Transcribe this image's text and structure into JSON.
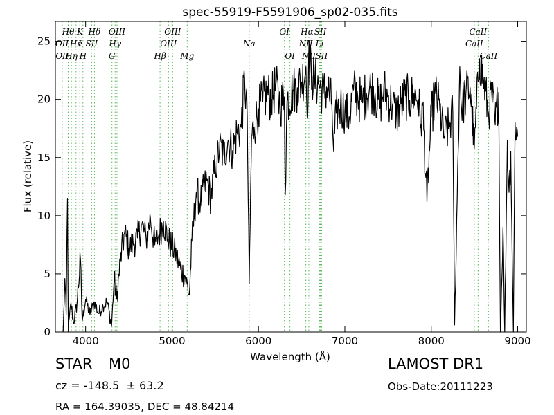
{
  "chart_data": {
    "type": "line",
    "title": "spec-55919-F5591906_sp02-035.fits",
    "xlabel": "Wavelength (Å)",
    "ylabel": "Flux (relative)",
    "xlim": [
      3650,
      9100
    ],
    "ylim": [
      0,
      26.7
    ],
    "xticks": [
      4000,
      5000,
      6000,
      7000,
      8000,
      9000
    ],
    "yticks": [
      0,
      5,
      10,
      15,
      20,
      25
    ],
    "grid": false,
    "line_color": "#000000",
    "marker_color": "#5cb85c",
    "spectral_lines": [
      {
        "label": "Hθ",
        "wavelength": 3798,
        "row": 0
      },
      {
        "label": "OII",
        "wavelength": 3727,
        "row": 1
      },
      {
        "label": "OII",
        "wavelength": 3729,
        "row": 2
      },
      {
        "label": "Hη",
        "wavelength": 3835,
        "row": 2
      },
      {
        "label": "He",
        "wavelength": 3889,
        "row": 1
      },
      {
        "label": "K",
        "wavelength": 3934,
        "row": 0
      },
      {
        "label": "I",
        "wavelength": 3933,
        "row": 1
      },
      {
        "label": "H",
        "wavelength": 3969,
        "row": 2
      },
      {
        "label": "SII",
        "wavelength": 4070,
        "row": 1
      },
      {
        "label": "Hδ",
        "wavelength": 4102,
        "row": 0
      },
      {
        "label": "OIII",
        "wavelength": 4363,
        "row": 0
      },
      {
        "label": "Hγ",
        "wavelength": 4341,
        "row": 1
      },
      {
        "label": "G",
        "wavelength": 4305,
        "row": 2
      },
      {
        "label": "OIII",
        "wavelength": 5007,
        "row": 0
      },
      {
        "label": "OIII",
        "wavelength": 4959,
        "row": 1
      },
      {
        "label": "Hβ",
        "wavelength": 4861,
        "row": 2
      },
      {
        "label": "Mg",
        "wavelength": 5175,
        "row": 2
      },
      {
        "label": "Na",
        "wavelength": 5893,
        "row": 1
      },
      {
        "label": "OI",
        "wavelength": 6300,
        "row": 0
      },
      {
        "label": "OI",
        "wavelength": 6364,
        "row": 2
      },
      {
        "label": "Hα",
        "wavelength": 6563,
        "row": 0
      },
      {
        "label": "SII",
        "wavelength": 6716,
        "row": 0
      },
      {
        "label": "NII",
        "wavelength": 6548,
        "row": 1
      },
      {
        "label": "NII",
        "wavelength": 6583,
        "row": 2
      },
      {
        "label": "Li",
        "wavelength": 6708,
        "row": 1
      },
      {
        "label": "SII",
        "wavelength": 6731,
        "row": 2
      },
      {
        "label": "CaII",
        "wavelength": 8542,
        "row": 0
      },
      {
        "label": "CaII",
        "wavelength": 8498,
        "row": 1
      },
      {
        "label": "CaII",
        "wavelength": 8662,
        "row": 2
      }
    ],
    "flux_anchors": [
      [
        3740,
        0
      ],
      [
        3760,
        4.6
      ],
      [
        3775,
        1.5
      ],
      [
        3790,
        11.5
      ],
      [
        3800,
        0
      ],
      [
        3830,
        2.5
      ],
      [
        3860,
        0.8
      ],
      [
        3900,
        2.4
      ],
      [
        3940,
        6.3
      ],
      [
        3960,
        1.0
      ],
      [
        4000,
        2.8
      ],
      [
        4050,
        1.5
      ],
      [
        4100,
        2.6
      ],
      [
        4150,
        1.6
      ],
      [
        4200,
        2.3
      ],
      [
        4250,
        2.6
      ],
      [
        4300,
        0.5
      ],
      [
        4330,
        4.5
      ],
      [
        4360,
        2.8
      ],
      [
        4400,
        6.0
      ],
      [
        4450,
        8.5
      ],
      [
        4500,
        7.2
      ],
      [
        4550,
        7.6
      ],
      [
        4600,
        8.1
      ],
      [
        4650,
        9.2
      ],
      [
        4700,
        8.0
      ],
      [
        4750,
        9.8
      ],
      [
        4800,
        7.5
      ],
      [
        4850,
        8.4
      ],
      [
        4900,
        9.5
      ],
      [
        4950,
        8.0
      ],
      [
        5000,
        7.4
      ],
      [
        5050,
        6.5
      ],
      [
        5100,
        5.4
      ],
      [
        5150,
        4.8
      ],
      [
        5200,
        3.2
      ],
      [
        5230,
        7.8
      ],
      [
        5280,
        12.0
      ],
      [
        5330,
        11.2
      ],
      [
        5400,
        13.0
      ],
      [
        5450,
        11.5
      ],
      [
        5500,
        14.2
      ],
      [
        5550,
        15.8
      ],
      [
        5600,
        15.2
      ],
      [
        5650,
        16.5
      ],
      [
        5700,
        15.6
      ],
      [
        5750,
        17.2
      ],
      [
        5800,
        17.6
      ],
      [
        5840,
        21.8
      ],
      [
        5870,
        18.5
      ],
      [
        5893,
        4.2
      ],
      [
        5920,
        16.8
      ],
      [
        5950,
        17.6
      ],
      [
        6000,
        19.2
      ],
      [
        6050,
        19.8
      ],
      [
        6100,
        20.5
      ],
      [
        6150,
        20.0
      ],
      [
        6200,
        21.2
      ],
      [
        6250,
        19.5
      ],
      [
        6300,
        20.2
      ],
      [
        6310,
        11.8
      ],
      [
        6330,
        19.8
      ],
      [
        6400,
        20.8
      ],
      [
        6450,
        21.0
      ],
      [
        6500,
        21.5
      ],
      [
        6550,
        22.8
      ],
      [
        6563,
        18.5
      ],
      [
        6580,
        23.5
      ],
      [
        6620,
        22.0
      ],
      [
        6650,
        21.6
      ],
      [
        6700,
        21.3
      ],
      [
        6750,
        20.5
      ],
      [
        6800,
        21.0
      ],
      [
        6850,
        19.5
      ],
      [
        6870,
        15.5
      ],
      [
        6900,
        18.8
      ],
      [
        6950,
        19.5
      ],
      [
        7000,
        19.0
      ],
      [
        7050,
        18.5
      ],
      [
        7100,
        20.8
      ],
      [
        7150,
        20.2
      ],
      [
        7200,
        19.8
      ],
      [
        7250,
        20.5
      ],
      [
        7300,
        21.0
      ],
      [
        7350,
        20.5
      ],
      [
        7400,
        19.4
      ],
      [
        7450,
        20.8
      ],
      [
        7500,
        20.2
      ],
      [
        7550,
        19.5
      ],
      [
        7600,
        18.8
      ],
      [
        7650,
        19.6
      ],
      [
        7700,
        20.3
      ],
      [
        7750,
        19.9
      ],
      [
        7800,
        20.5
      ],
      [
        7850,
        20.0
      ],
      [
        7880,
        17.8
      ],
      [
        7900,
        19.5
      ],
      [
        7950,
        11.2
      ],
      [
        8000,
        18.5
      ],
      [
        8050,
        20.5
      ],
      [
        8100,
        19.0
      ],
      [
        8150,
        16.8
      ],
      [
        8200,
        17.5
      ],
      [
        8250,
        18.8
      ],
      [
        8270,
        0.6
      ],
      [
        8300,
        11.5
      ],
      [
        8330,
        22.8
      ],
      [
        8350,
        19.2
      ],
      [
        8400,
        20.5
      ],
      [
        8450,
        21.0
      ],
      [
        8498,
        15.8
      ],
      [
        8542,
        21.5
      ],
      [
        8560,
        23.5
      ],
      [
        8600,
        21.8
      ],
      [
        8662,
        18.8
      ],
      [
        8700,
        20.5
      ],
      [
        8740,
        17.8
      ],
      [
        8780,
        20.6
      ],
      [
        8800,
        0
      ],
      [
        8830,
        9.0
      ],
      [
        8850,
        0
      ],
      [
        8880,
        16.5
      ],
      [
        8900,
        12.0
      ],
      [
        8920,
        15.5
      ],
      [
        8950,
        0
      ],
      [
        8970,
        18.0
      ],
      [
        9000,
        16.8
      ]
    ]
  },
  "info": {
    "object_class": "STAR",
    "subclass": "M0",
    "survey": "LAMOST DR1",
    "redshift_line": "cz = -148.5  ± 63.2",
    "obs_date": "Obs-Date:20111223",
    "coords": "RA = 164.39035, DEC = 48.84214"
  }
}
